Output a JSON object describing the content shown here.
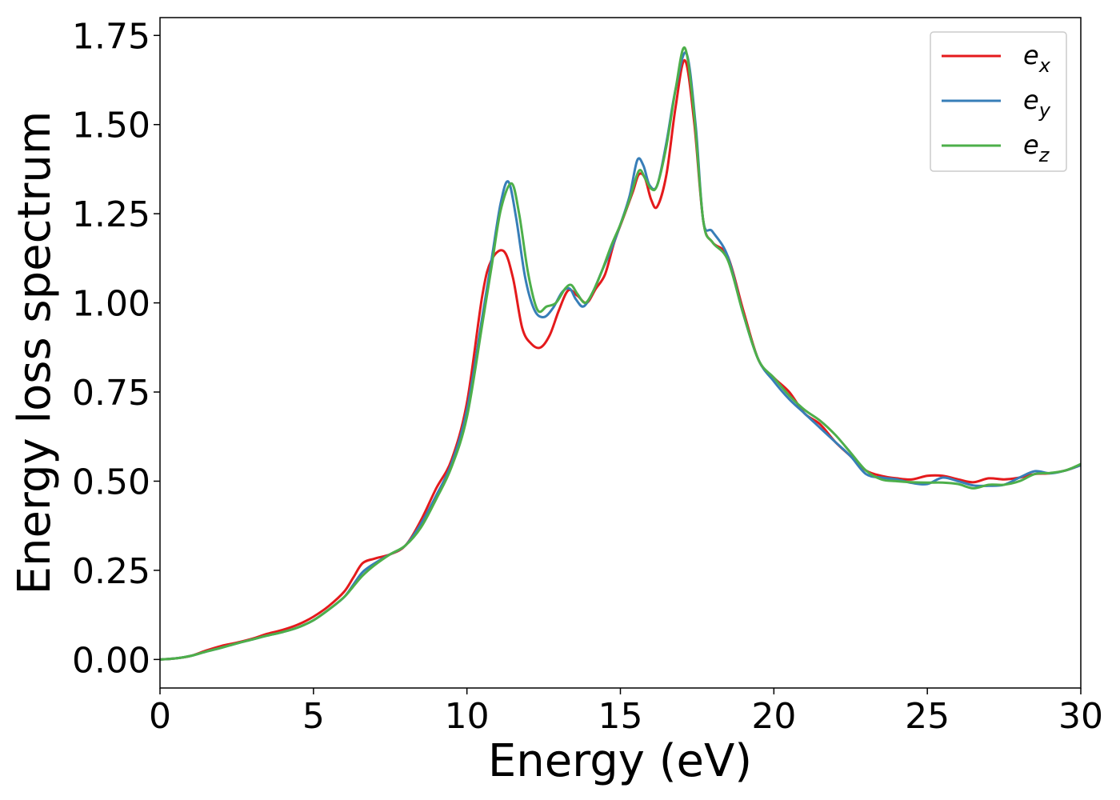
{
  "chart_data": {
    "type": "line",
    "title": "",
    "xlabel": "Energy (eV)",
    "ylabel": "Energy loss spectrum",
    "xlim": [
      0,
      30
    ],
    "ylim": [
      -0.08,
      1.8
    ],
    "xticks": [
      0,
      5,
      10,
      15,
      20,
      25,
      30
    ],
    "xtick_labels": [
      "0",
      "5",
      "10",
      "15",
      "20",
      "25",
      "30"
    ],
    "yticks": [
      0,
      0.25,
      0.5,
      0.75,
      1.0,
      1.25,
      1.5,
      1.75
    ],
    "ytick_labels": [
      "0.00",
      "0.25",
      "0.50",
      "0.75",
      "1.00",
      "1.25",
      "1.50",
      "1.75"
    ],
    "grid": false,
    "legend_position": "top-right",
    "series": [
      {
        "name": "e_x",
        "legend_base": "e",
        "legend_sub": "x",
        "color": "#e41a1c",
        "x": [
          0,
          0.5,
          1,
          1.5,
          2,
          2.5,
          3,
          3.5,
          4,
          4.5,
          5,
          5.5,
          6,
          6.3,
          6.6,
          7,
          7.5,
          8,
          8.5,
          9,
          9.5,
          10,
          10.5,
          10.8,
          11.2,
          11.5,
          11.8,
          12.1,
          12.4,
          12.7,
          13,
          13.3,
          13.6,
          13.9,
          14.2,
          14.5,
          14.8,
          15.1,
          15.4,
          15.6,
          15.8,
          16,
          16.2,
          16.5,
          16.8,
          17.1,
          17.4,
          17.7,
          18,
          18.5,
          19,
          19.5,
          20,
          20.5,
          21,
          21.5,
          22,
          22.5,
          23,
          23.5,
          24,
          24.5,
          25,
          25.5,
          26,
          26.5,
          27,
          27.5,
          28,
          28.5,
          29,
          29.5,
          30
        ],
        "y": [
          0,
          0.003,
          0.01,
          0.025,
          0.038,
          0.047,
          0.058,
          0.072,
          0.083,
          0.098,
          0.12,
          0.15,
          0.19,
          0.23,
          0.27,
          0.283,
          0.295,
          0.32,
          0.39,
          0.48,
          0.56,
          0.72,
          1.02,
          1.12,
          1.145,
          1.07,
          0.93,
          0.885,
          0.875,
          0.91,
          0.98,
          1.035,
          1.02,
          1.0,
          1.04,
          1.08,
          1.17,
          1.24,
          1.31,
          1.36,
          1.35,
          1.29,
          1.27,
          1.36,
          1.55,
          1.68,
          1.51,
          1.23,
          1.17,
          1.13,
          0.98,
          0.84,
          0.79,
          0.75,
          0.69,
          0.66,
          0.61,
          0.57,
          0.53,
          0.515,
          0.508,
          0.505,
          0.515,
          0.515,
          0.505,
          0.497,
          0.508,
          0.505,
          0.51,
          0.52,
          0.522,
          0.53,
          0.545
        ]
      },
      {
        "name": "e_y",
        "legend_base": "e",
        "legend_sub": "y",
        "color": "#377eb8",
        "x": [
          0,
          0.5,
          1,
          1.5,
          2,
          2.5,
          3,
          3.5,
          4,
          4.5,
          5,
          5.5,
          6,
          6.3,
          6.6,
          7,
          7.5,
          8,
          8.5,
          9,
          9.5,
          10,
          10.5,
          10.8,
          11.1,
          11.35,
          11.6,
          11.9,
          12.2,
          12.5,
          12.8,
          13.1,
          13.35,
          13.55,
          13.8,
          14.1,
          14.4,
          14.7,
          15,
          15.3,
          15.55,
          15.75,
          15.95,
          16.2,
          16.5,
          16.8,
          17.15,
          17.45,
          17.7,
          18,
          18.5,
          19,
          19.5,
          20,
          20.5,
          21,
          21.5,
          22,
          22.5,
          23,
          23.5,
          24,
          24.5,
          25,
          25.5,
          26,
          26.5,
          27,
          27.5,
          28,
          28.5,
          29,
          29.5,
          30
        ],
        "y": [
          0,
          0.003,
          0.01,
          0.022,
          0.033,
          0.045,
          0.056,
          0.067,
          0.077,
          0.09,
          0.11,
          0.14,
          0.175,
          0.21,
          0.245,
          0.27,
          0.295,
          0.32,
          0.38,
          0.46,
          0.55,
          0.7,
          0.96,
          1.12,
          1.28,
          1.34,
          1.24,
          1.07,
          0.98,
          0.96,
          0.985,
          1.03,
          1.04,
          1.01,
          0.99,
          1.03,
          1.09,
          1.15,
          1.22,
          1.3,
          1.4,
          1.385,
          1.33,
          1.33,
          1.45,
          1.6,
          1.7,
          1.5,
          1.23,
          1.2,
          1.13,
          0.97,
          0.84,
          0.78,
          0.73,
          0.69,
          0.65,
          0.61,
          0.57,
          0.52,
          0.51,
          0.505,
          0.495,
          0.492,
          0.51,
          0.5,
          0.488,
          0.487,
          0.49,
          0.51,
          0.528,
          0.522,
          0.53,
          0.545
        ]
      },
      {
        "name": "e_z",
        "legend_base": "e",
        "legend_sub": "z",
        "color": "#4daf4a",
        "x": [
          0,
          0.5,
          1,
          1.5,
          2,
          2.5,
          3,
          3.5,
          4,
          4.5,
          5,
          5.5,
          6,
          6.3,
          6.6,
          7,
          7.5,
          8,
          8.5,
          9,
          9.5,
          10,
          10.5,
          10.8,
          11.1,
          11.45,
          11.7,
          12,
          12.3,
          12.6,
          12.9,
          13.2,
          13.4,
          13.6,
          13.85,
          14.1,
          14.4,
          14.7,
          15,
          15.3,
          15.6,
          15.8,
          16,
          16.2,
          16.5,
          16.8,
          17.1,
          17.4,
          17.7,
          18,
          18.5,
          19,
          19.5,
          20,
          20.5,
          21,
          21.5,
          22,
          22.5,
          23,
          23.5,
          24,
          24.5,
          25,
          25.5,
          26,
          26.5,
          27,
          27.5,
          28,
          28.5,
          29,
          29.5,
          30
        ],
        "y": [
          0,
          0.003,
          0.01,
          0.022,
          0.033,
          0.045,
          0.056,
          0.067,
          0.077,
          0.09,
          0.11,
          0.14,
          0.175,
          0.205,
          0.235,
          0.265,
          0.295,
          0.32,
          0.37,
          0.45,
          0.54,
          0.68,
          0.94,
          1.1,
          1.26,
          1.335,
          1.25,
          1.08,
          0.98,
          0.99,
          1.0,
          1.04,
          1.05,
          1.025,
          1.0,
          1.03,
          1.09,
          1.16,
          1.22,
          1.29,
          1.37,
          1.35,
          1.32,
          1.33,
          1.44,
          1.6,
          1.715,
          1.53,
          1.23,
          1.17,
          1.12,
          0.97,
          0.84,
          0.79,
          0.74,
          0.7,
          0.67,
          0.63,
          0.58,
          0.53,
          0.505,
          0.5,
          0.497,
          0.496,
          0.496,
          0.492,
          0.48,
          0.49,
          0.49,
          0.5,
          0.52,
          0.523,
          0.53,
          0.548
        ]
      }
    ]
  }
}
